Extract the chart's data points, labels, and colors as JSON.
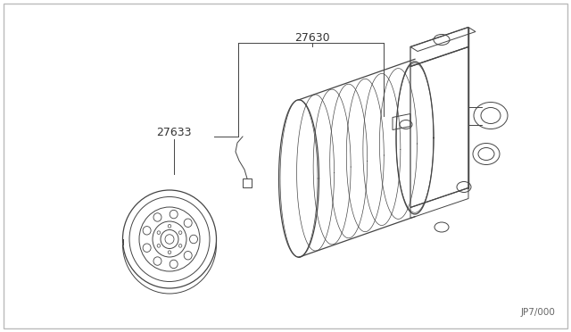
{
  "background_color": "#ffffff",
  "line_color": "#444444",
  "label_color": "#333333",
  "diagram_code": "JP7/000",
  "figsize": [
    6.4,
    3.72
  ],
  "dpi": 100
}
